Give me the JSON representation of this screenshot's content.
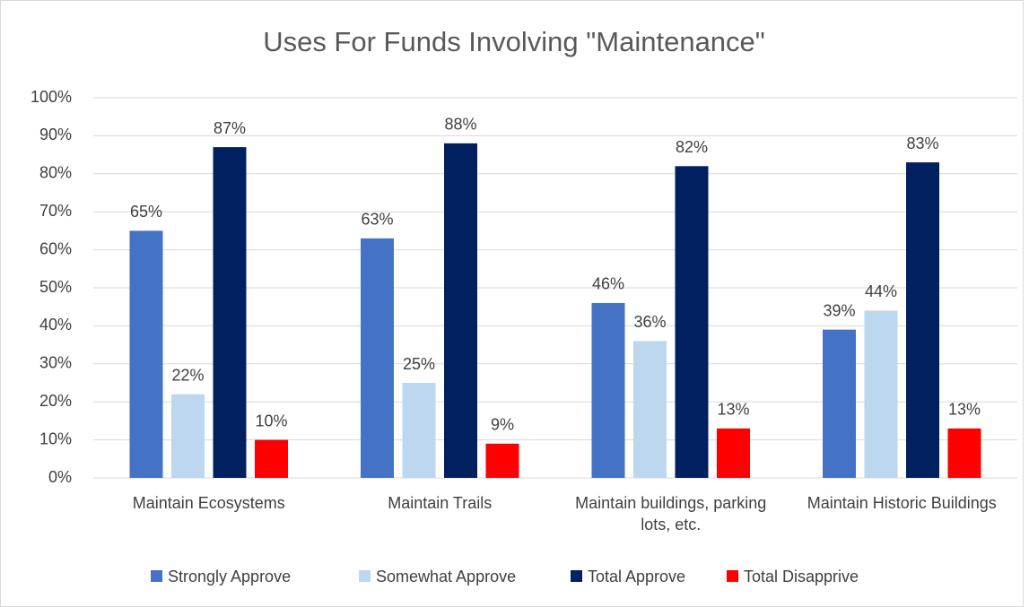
{
  "chart_data": {
    "type": "bar",
    "title": "Uses For Funds Involving \"Maintenance\"",
    "categories": [
      "Maintain Ecosystems",
      "Maintain Trails",
      "Maintain buildings, parking lots, etc.",
      "Maintain Historic Buildings"
    ],
    "series": [
      {
        "name": "Strongly Approve",
        "color": "#4472c4",
        "values": [
          65,
          63,
          46,
          39
        ],
        "value_labels": [
          "65%",
          "63%",
          "46%",
          "39%"
        ]
      },
      {
        "name": "Somewhat Approve",
        "color": "#bdd7ee",
        "values": [
          22,
          25,
          36,
          44
        ],
        "value_labels": [
          "22%",
          "25%",
          "36%",
          "44%"
        ]
      },
      {
        "name": "Total Approve",
        "color": "#002060",
        "values": [
          87,
          88,
          82,
          83
        ],
        "value_labels": [
          "87%",
          "88%",
          "82%",
          "83%"
        ]
      },
      {
        "name": "Total Disapprive",
        "color": "#ff0000",
        "values": [
          10,
          9,
          13,
          13
        ],
        "value_labels": [
          "10%",
          "9%",
          "13%",
          "13%"
        ]
      }
    ],
    "ylim": [
      0,
      100
    ],
    "yticks": [
      {
        "value": 0,
        "label": "0%"
      },
      {
        "value": 10,
        "label": "10%"
      },
      {
        "value": 20,
        "label": "20%"
      },
      {
        "value": 30,
        "label": "30%"
      },
      {
        "value": 40,
        "label": "40%"
      },
      {
        "value": 50,
        "label": "50%"
      },
      {
        "value": 60,
        "label": "60%"
      },
      {
        "value": 70,
        "label": "70%"
      },
      {
        "value": 80,
        "label": "80%"
      },
      {
        "value": 90,
        "label": "90%"
      },
      {
        "value": 100,
        "label": "100%"
      }
    ],
    "grid": true,
    "legend": "bottom"
  }
}
